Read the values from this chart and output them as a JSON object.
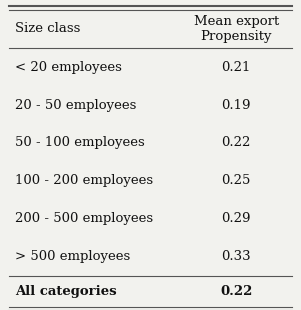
{
  "col1_header": "Size class",
  "col2_header": "Mean export\nPropensity",
  "rows": [
    {
      "label": "< 20 employees",
      "value": "0.21",
      "bold": false
    },
    {
      "label": "20 - 50 employees",
      "value": "0.19",
      "bold": false
    },
    {
      "label": "50 - 100 employees",
      "value": "0.22",
      "bold": false
    },
    {
      "label": "100 - 200 employees",
      "value": "0.25",
      "bold": false
    },
    {
      "label": "200 - 500 employees",
      "value": "0.29",
      "bold": false
    },
    {
      "label": "> 500 employees",
      "value": "0.33",
      "bold": false
    },
    {
      "label": "All categories",
      "value": "0.22",
      "bold": true
    }
  ],
  "bg_color": "#f2f2ee",
  "line_color": "#555555",
  "text_color": "#111111",
  "font_size": 9.5,
  "header_font_size": 9.5
}
